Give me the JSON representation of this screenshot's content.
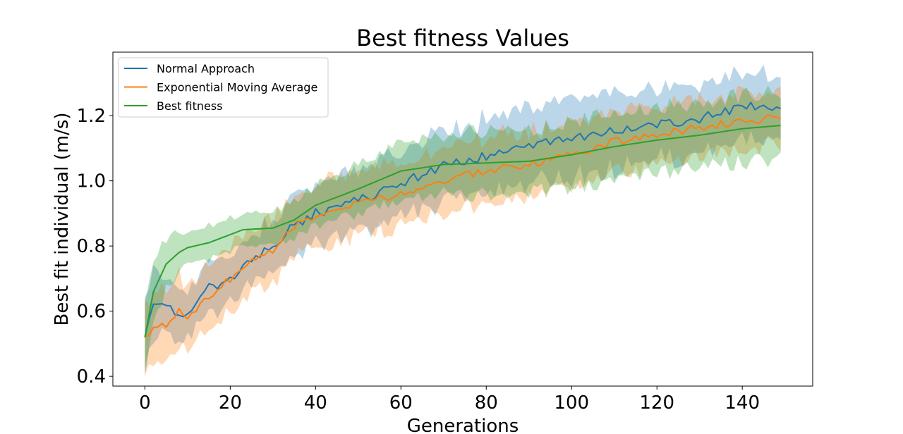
{
  "chart_data": {
    "type": "line",
    "title": "Best fitness Values",
    "xlabel": "Generations",
    "ylabel": "Best fit individual (m/s)",
    "xlim": [
      -7.5,
      156.5
    ],
    "ylim": [
      0.37,
      1.395
    ],
    "xticks": [
      0,
      20,
      40,
      60,
      80,
      100,
      120,
      140
    ],
    "yticks": [
      0.4,
      0.6,
      0.8,
      1.0,
      1.2
    ],
    "ytick_labels": [
      "0.4",
      "0.6",
      "0.8",
      "1.0",
      "1.2"
    ],
    "grid": false,
    "legend_position": "upper left",
    "series": [
      {
        "name": "Normal Approach",
        "color": "#1f77b4",
        "band_color": "#1f77b4",
        "band_opacity": 0.3,
        "x_range": [
          0,
          149
        ],
        "anchors": [
          [
            0,
            0.52
          ],
          [
            2,
            0.635
          ],
          [
            5,
            0.605
          ],
          [
            10,
            0.59
          ],
          [
            15,
            0.67
          ],
          [
            20,
            0.69
          ],
          [
            25,
            0.76
          ],
          [
            30,
            0.8
          ],
          [
            35,
            0.865
          ],
          [
            40,
            0.9
          ],
          [
            50,
            0.94
          ],
          [
            60,
            0.99
          ],
          [
            70,
            1.05
          ],
          [
            80,
            1.075
          ],
          [
            90,
            1.11
          ],
          [
            100,
            1.125
          ],
          [
            110,
            1.155
          ],
          [
            120,
            1.175
          ],
          [
            130,
            1.19
          ],
          [
            140,
            1.225
          ],
          [
            149,
            1.23
          ]
        ],
        "band_halfwidth": [
          [
            0,
            0.11
          ],
          [
            10,
            0.07
          ],
          [
            30,
            0.08
          ],
          [
            60,
            0.1
          ],
          [
            100,
            0.12
          ],
          [
            149,
            0.1
          ]
        ],
        "noise_amplitude": 0.015
      },
      {
        "name": "Exponential Moving Average",
        "color": "#ff7f0e",
        "band_color": "#ff7f0e",
        "band_opacity": 0.3,
        "x_range": [
          0,
          149
        ],
        "anchors": [
          [
            0,
            0.52
          ],
          [
            2,
            0.555
          ],
          [
            5,
            0.56
          ],
          [
            8,
            0.6
          ],
          [
            10,
            0.575
          ],
          [
            15,
            0.645
          ],
          [
            20,
            0.7
          ],
          [
            25,
            0.76
          ],
          [
            30,
            0.79
          ],
          [
            35,
            0.86
          ],
          [
            40,
            0.885
          ],
          [
            50,
            0.93
          ],
          [
            60,
            0.96
          ],
          [
            70,
            1.0
          ],
          [
            80,
            1.03
          ],
          [
            90,
            1.05
          ],
          [
            100,
            1.08
          ],
          [
            110,
            1.12
          ],
          [
            120,
            1.14
          ],
          [
            130,
            1.165
          ],
          [
            140,
            1.18
          ],
          [
            149,
            1.195
          ]
        ],
        "band_halfwidth": [
          [
            0,
            0.11
          ],
          [
            20,
            0.1
          ],
          [
            60,
            0.1
          ],
          [
            100,
            0.1
          ],
          [
            149,
            0.08
          ]
        ],
        "noise_amplitude": 0.012
      },
      {
        "name": "Best fitness",
        "color": "#2ca02c",
        "band_color": "#2ca02c",
        "band_opacity": 0.3,
        "x_range": [
          0,
          149
        ],
        "anchors": [
          [
            0,
            0.52
          ],
          [
            2,
            0.66
          ],
          [
            5,
            0.745
          ],
          [
            8,
            0.78
          ],
          [
            10,
            0.795
          ],
          [
            15,
            0.81
          ],
          [
            20,
            0.835
          ],
          [
            23,
            0.85
          ],
          [
            30,
            0.855
          ],
          [
            35,
            0.88
          ],
          [
            40,
            0.925
          ],
          [
            50,
            0.975
          ],
          [
            60,
            1.03
          ],
          [
            70,
            1.05
          ],
          [
            80,
            1.055
          ],
          [
            90,
            1.06
          ],
          [
            100,
            1.08
          ],
          [
            110,
            1.105
          ],
          [
            120,
            1.125
          ],
          [
            130,
            1.14
          ],
          [
            140,
            1.16
          ],
          [
            149,
            1.17
          ]
        ],
        "band_halfwidth": [
          [
            0,
            0.1
          ],
          [
            10,
            0.05
          ],
          [
            30,
            0.05
          ],
          [
            60,
            0.09
          ],
          [
            100,
            0.1
          ],
          [
            149,
            0.105
          ]
        ],
        "noise_amplitude": 0.0
      }
    ]
  }
}
